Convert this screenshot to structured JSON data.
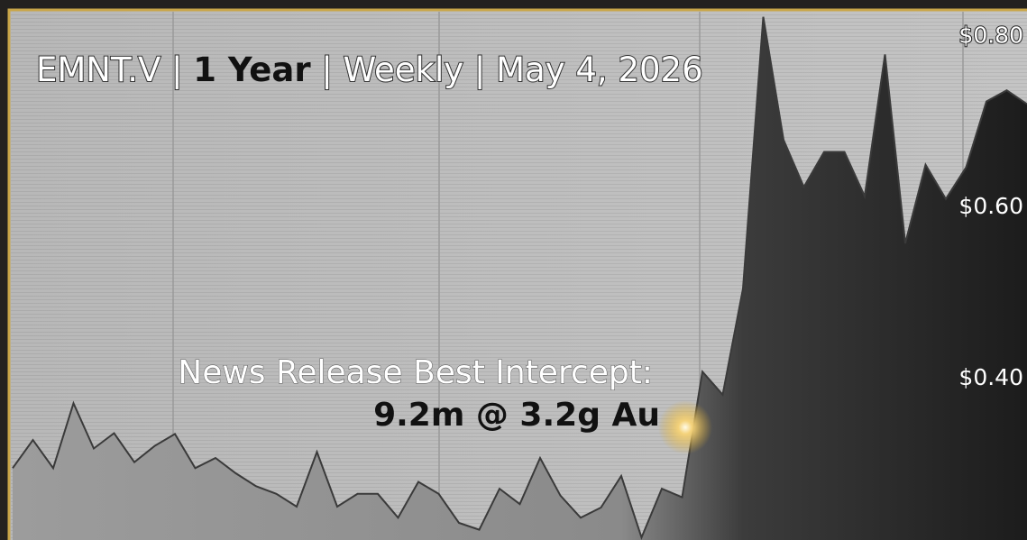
{
  "chart_data": {
    "type": "area",
    "title_parts": [
      "EMNT.V | ",
      "1 Year",
      " | Weekly | May 4, 2026"
    ],
    "annotation": [
      "News Release Best Intercept:",
      "9.2m @ 3.2g Au"
    ],
    "categories": [
      null,
      null,
      null,
      null,
      null,
      null,
      null,
      null,
      null,
      null,
      null,
      null,
      null,
      null,
      null,
      null,
      null,
      null,
      null,
      null,
      null,
      null,
      null,
      null,
      null,
      null,
      null,
      null,
      null,
      null,
      null,
      null,
      null,
      null,
      null,
      null,
      null,
      null,
      null,
      null,
      null,
      null,
      null,
      null,
      null,
      null,
      null,
      null,
      null,
      null,
      null
    ],
    "values": [
      0.293,
      0.326,
      0.293,
      0.369,
      0.316,
      0.334,
      0.3,
      0.319,
      0.333,
      0.293,
      0.305,
      0.287,
      0.272,
      0.263,
      0.248,
      0.312,
      0.248,
      0.263,
      0.263,
      0.235,
      0.277,
      0.263,
      0.229,
      0.221,
      0.269,
      0.251,
      0.305,
      0.261,
      0.235,
      0.247,
      0.284,
      0.212,
      0.269,
      0.259,
      0.406,
      0.379,
      0.503,
      0.821,
      0.677,
      0.622,
      0.663,
      0.663,
      0.611,
      0.777,
      0.556,
      0.648,
      0.608,
      0.645,
      0.722,
      0.735,
      0.719
    ],
    "color": "#3a3a3a",
    "ylim": [
      0.209,
      0.827
    ],
    "yticks": [
      {
        "value": 0.4,
        "label": "$0.40"
      },
      {
        "value": 0.6,
        "label": "$0.60"
      },
      {
        "value": 0.8,
        "label": "$0.80"
      }
    ],
    "grid": false
  }
}
